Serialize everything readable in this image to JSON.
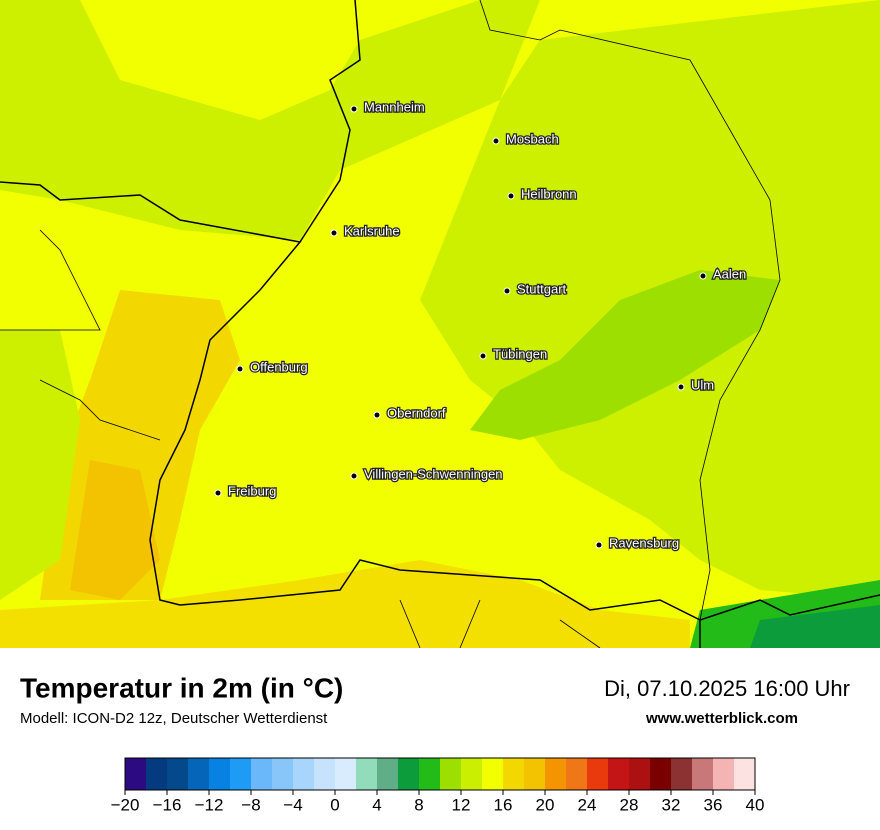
{
  "header": {
    "title": "Temperatur in 2m (in °C)",
    "subtitle": "Modell: ICON-D2 12z, Deutscher Wetterdienst",
    "date": "Di, 07.10.2025 16:00 Uhr",
    "website": "www.wetterblick.com"
  },
  "cities": [
    "Mannheim",
    "Mosbach",
    "Heilbronn",
    "Karlsruhe",
    "Aalen",
    "Stuttgart",
    "Offenburg",
    "Tübingen",
    "Ulm",
    "Oberndorf",
    "Villingen-Schwenningen",
    "Freiburg",
    "Ravensburg"
  ],
  "colorbar": {
    "range": [
      -20,
      40
    ],
    "ticks": [
      {
        "value": -20,
        "label": "−20"
      },
      {
        "value": -16,
        "label": "−16"
      },
      {
        "value": -12,
        "label": "−12"
      },
      {
        "value": -8,
        "label": "−8"
      },
      {
        "value": -4,
        "label": "−4"
      },
      0,
      4,
      8,
      12,
      16,
      20,
      24,
      28,
      32,
      36,
      40
    ],
    "colors": [
      "#2c0a82",
      "#033a80",
      "#04498c",
      "#0565b8",
      "#0882e2",
      "#1d9bf5",
      "#6ab8fa",
      "#88c6fa",
      "#a8d5fc",
      "#c6e2fd",
      "#d8ecfd",
      "#92dbbb",
      "#5fae88",
      "#0c9c3c",
      "#22bb18",
      "#9de000",
      "#caef00",
      "#f2ff00",
      "#f2d800",
      "#f3c200",
      "#f39400",
      "#f07718",
      "#e83a0d",
      "#c31515",
      "#ad1010",
      "#7a0000",
      "#8c3232",
      "#c87878",
      "#f4b4b4",
      "#fde2e2"
    ]
  }
}
